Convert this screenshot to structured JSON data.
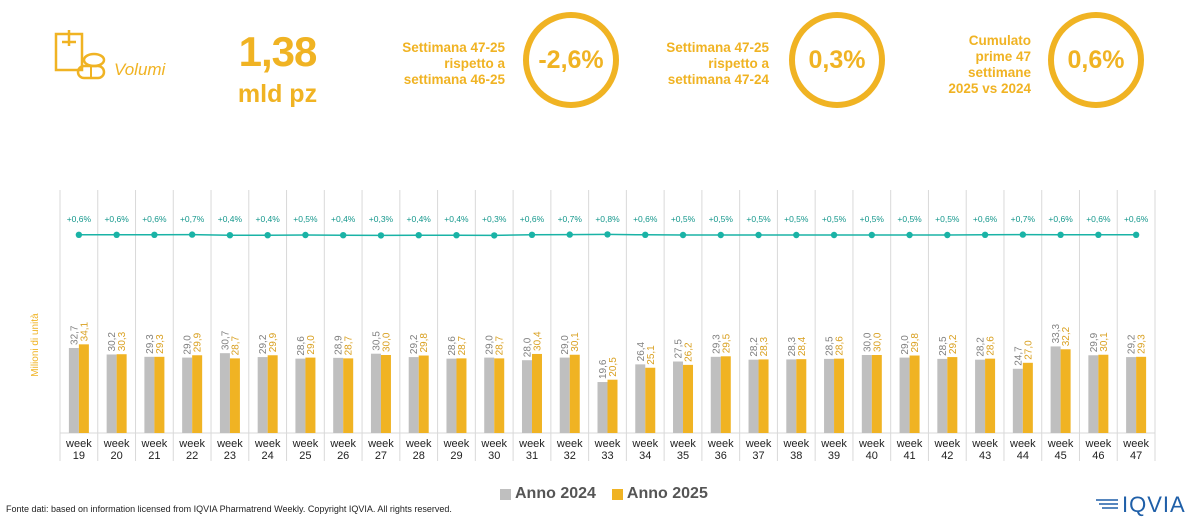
{
  "header": {
    "volumes_label": "Volumi",
    "big_number": "1,38",
    "big_unit": "mld pz",
    "icon": "pills-document-icon"
  },
  "kpis": [
    {
      "lines": [
        "Settimana 47-25",
        "rispetto a",
        "settimana 46-25"
      ],
      "value": "-2,6%"
    },
    {
      "lines": [
        "Settimana 47-25",
        "rispetto a",
        "settimana 47-24"
      ],
      "value": "0,3%"
    },
    {
      "lines": [
        "Cumulato",
        "prime 47",
        "settimane",
        "2025 vs 2024"
      ],
      "value": "0,6%"
    }
  ],
  "chart_data": {
    "type": "bar",
    "ylabel": "Milioni di unità",
    "categories": [
      "week 19",
      "week 20",
      "week 21",
      "week 22",
      "week 23",
      "week 24",
      "week 25",
      "week 26",
      "week 27",
      "week 28",
      "week 29",
      "week 30",
      "week 31",
      "week 32",
      "week 33",
      "week 34",
      "week 35",
      "week 36",
      "week 37",
      "week 38",
      "week 39",
      "week 40",
      "week 41",
      "week 42",
      "week 43",
      "week 44",
      "week 45",
      "week 46",
      "week 47"
    ],
    "series": [
      {
        "name": "Anno 2024",
        "color": "#bfbfbf",
        "values": [
          32.7,
          30.2,
          29.3,
          29.0,
          30.7,
          29.2,
          28.6,
          28.9,
          30.5,
          29.2,
          28.6,
          29.0,
          28.0,
          29.0,
          19.6,
          26.4,
          27.5,
          29.3,
          28.2,
          28.3,
          28.5,
          30.0,
          29.0,
          28.5,
          28.2,
          24.7,
          33.3,
          29.9,
          29.2
        ],
        "labels": [
          "32,7",
          "30,2",
          "29,3",
          "29,0",
          "30,7",
          "29,2",
          "28,6",
          "28,9",
          "30,5",
          "29,2",
          "28,6",
          "29,0",
          "28,0",
          "29,0",
          "19,6",
          "26,4",
          "27,5",
          "29,3",
          "28,2",
          "28,3",
          "28,5",
          "30,0",
          "29,0",
          "28,5",
          "28,2",
          "24,7",
          "33,3",
          "29,9",
          "29,2"
        ]
      },
      {
        "name": "Anno 2025",
        "color": "#f0b323",
        "values": [
          34.1,
          30.3,
          29.3,
          29.9,
          28.7,
          29.9,
          29.0,
          28.7,
          30.0,
          29.8,
          28.7,
          28.7,
          30.4,
          30.1,
          20.5,
          25.1,
          26.2,
          29.5,
          28.3,
          28.4,
          28.6,
          30.0,
          29.8,
          29.2,
          28.6,
          27.0,
          32.2,
          30.1,
          29.3
        ],
        "labels": [
          "34,1",
          "30,3",
          "29,3",
          "29,9",
          "28,7",
          "29,9",
          "29,0",
          "28,7",
          "30,0",
          "29,8",
          "28,7",
          "28,7",
          "30,4",
          "30,1",
          "20,5",
          "25,1",
          "26,2",
          "29,5",
          "28,3",
          "28,4",
          "28,6",
          "30,0",
          "29,8",
          "29,2",
          "28,6",
          "27,0",
          "32,2",
          "30,1",
          "29,3"
        ]
      }
    ],
    "growth": {
      "color": "#1ab3a6",
      "values": [
        0.6,
        0.6,
        0.6,
        0.7,
        0.4,
        0.4,
        0.5,
        0.4,
        0.3,
        0.4,
        0.4,
        0.3,
        0.6,
        0.7,
        0.8,
        0.6,
        0.5,
        0.5,
        0.5,
        0.5,
        0.5,
        0.5,
        0.5,
        0.5,
        0.6,
        0.7,
        0.6,
        0.6,
        0.6
      ],
      "labels": [
        "+0,6%",
        "+0,6%",
        "+0,6%",
        "+0,7%",
        "+0,4%",
        "+0,4%",
        "+0,5%",
        "+0,4%",
        "+0,3%",
        "+0,4%",
        "+0,4%",
        "+0,3%",
        "+0,6%",
        "+0,7%",
        "+0,8%",
        "+0,6%",
        "+0,5%",
        "+0,5%",
        "+0,5%",
        "+0,5%",
        "+0,5%",
        "+0,5%",
        "+0,5%",
        "+0,5%",
        "+0,6%",
        "+0,7%",
        "+0,6%",
        "+0,6%",
        "+0,6%"
      ]
    },
    "grid": true,
    "legend_position": "bottom"
  },
  "legend": {
    "items": [
      "Anno 2024",
      "Anno 2025"
    ]
  },
  "footer": {
    "source": "Fonte dati: based on information licensed from IQVIA Pharmatrend Weekly. Copyright IQVIA. All rights reserved.",
    "logo": "IQVIA"
  }
}
